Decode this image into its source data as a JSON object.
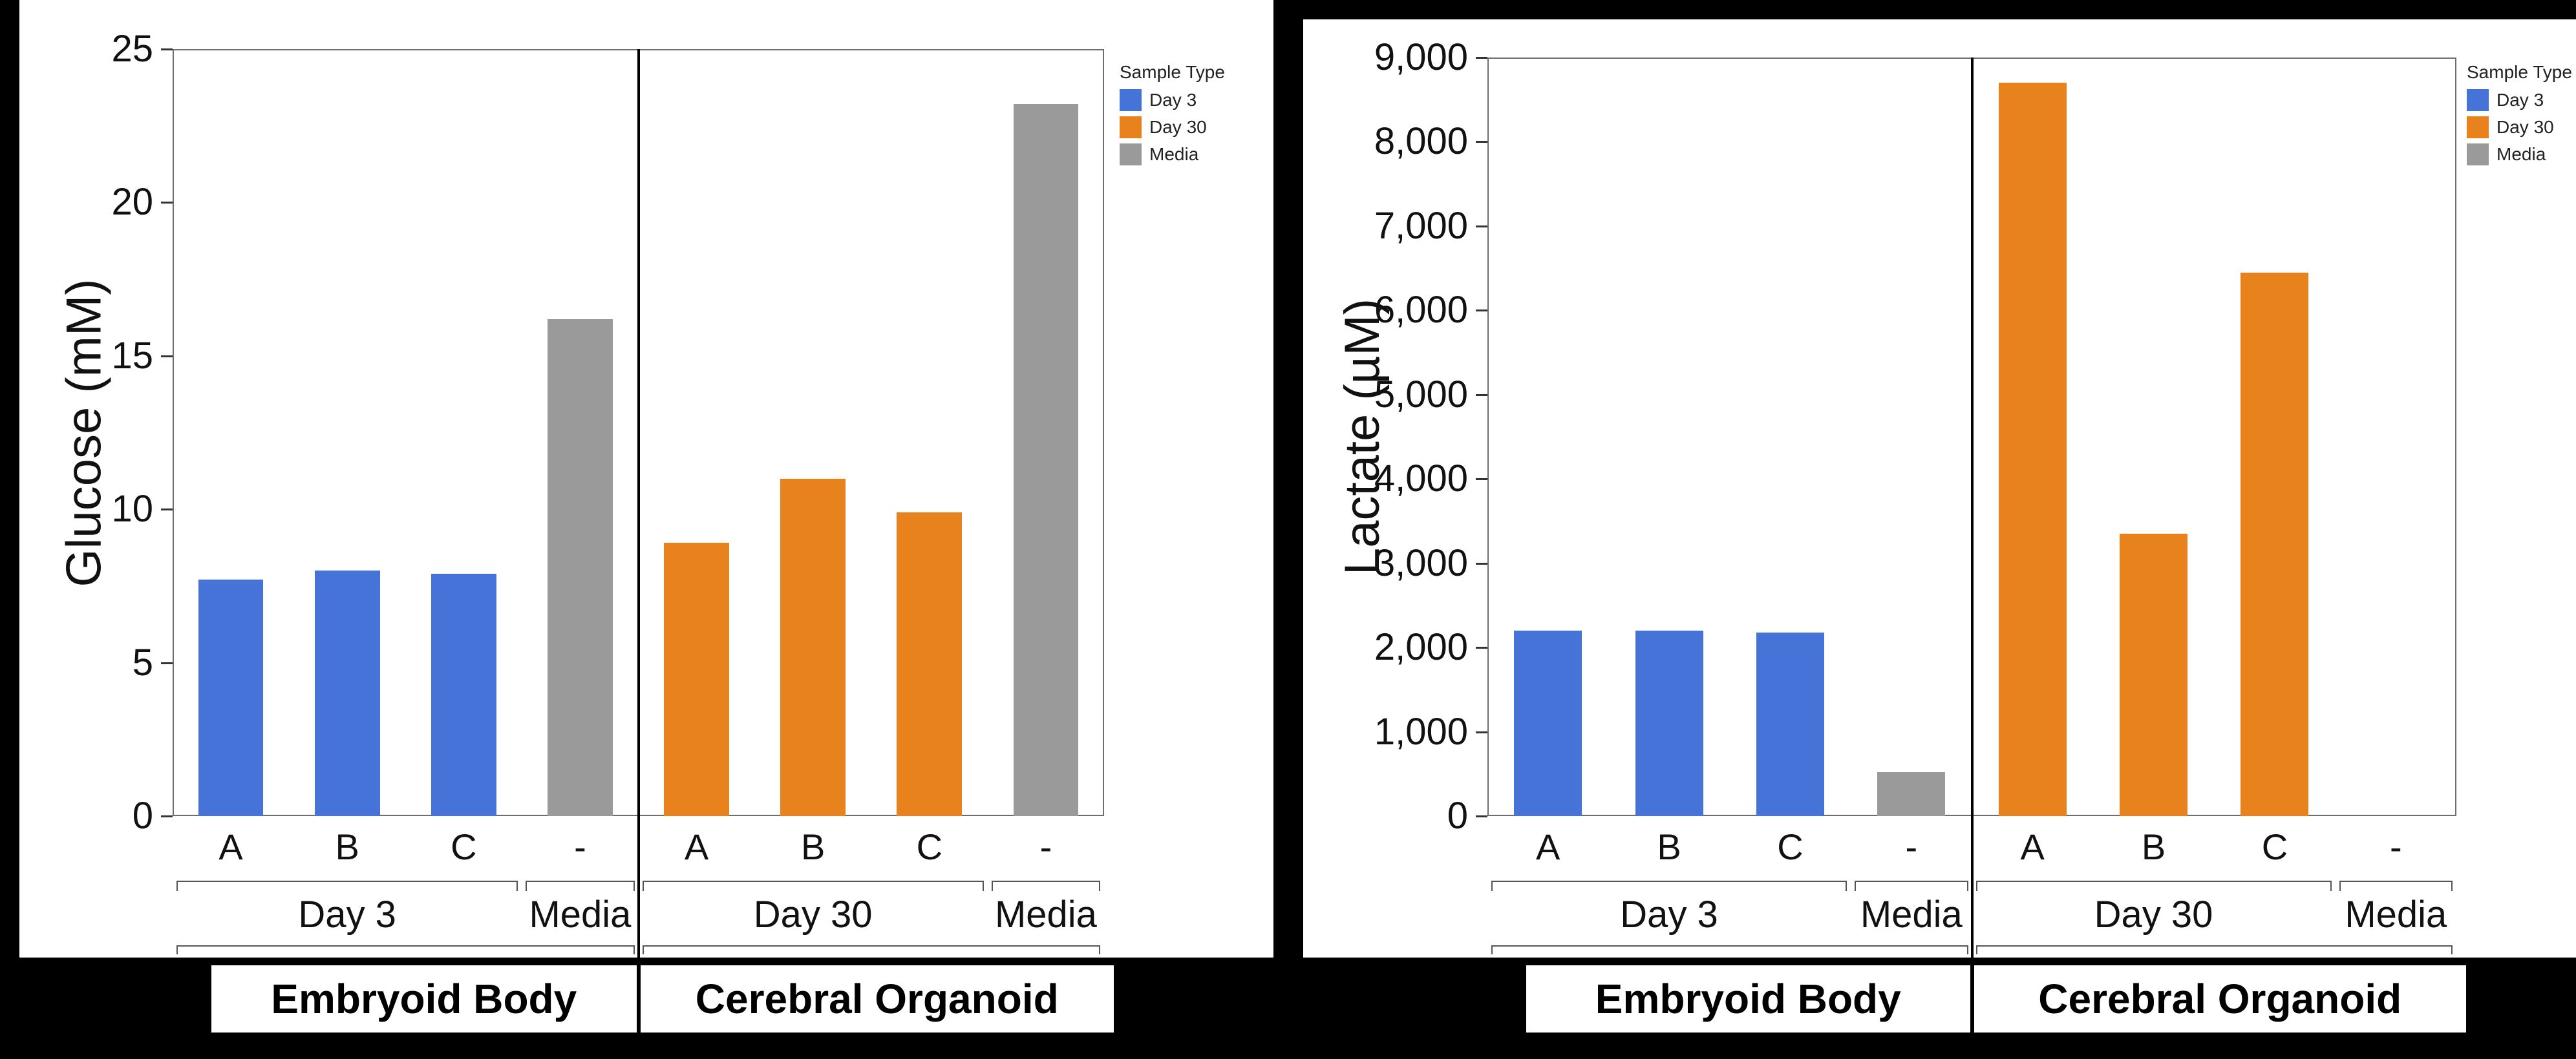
{
  "background": "#000000",
  "colors": {
    "day3": "#4573D8",
    "day30": "#E8821C",
    "media": "#9A9A9A"
  },
  "legend": {
    "title": "Sample Type",
    "items": [
      {
        "label": "Day 3",
        "color_key": "day3"
      },
      {
        "label": "Day 30",
        "color_key": "day30"
      },
      {
        "label": "Media",
        "color_key": "media"
      }
    ]
  },
  "chart_data": [
    {
      "type": "bar",
      "title": "",
      "ylabel": "Glucose (mM)",
      "xlabel": "",
      "ylim": [
        0,
        25
      ],
      "grid": false,
      "legend_position": "right-top",
      "yticks": [
        {
          "v": 0,
          "label": "0"
        },
        {
          "v": 5,
          "label": "5"
        },
        {
          "v": 10,
          "label": "10"
        },
        {
          "v": 15,
          "label": "15"
        },
        {
          "v": 20,
          "label": "20"
        },
        {
          "v": 25,
          "label": "25"
        }
      ],
      "categories": [
        "A",
        "B",
        "C",
        "-",
        "A",
        "B",
        "C",
        "-"
      ],
      "values": [
        7.7,
        8.0,
        7.9,
        16.2,
        8.9,
        11.0,
        9.9,
        23.2
      ],
      "bar_color_keys": [
        "day3",
        "day3",
        "day3",
        "media",
        "day30",
        "day30",
        "day30",
        "media"
      ],
      "groups": [
        {
          "label": "Day 3",
          "span": [
            0,
            3
          ]
        },
        {
          "label": "Media",
          "span": [
            3,
            4
          ]
        },
        {
          "label": "Day 30",
          "span": [
            4,
            7
          ]
        },
        {
          "label": "Media",
          "span": [
            7,
            8
          ]
        }
      ],
      "super_groups": [
        {
          "label": "Embryoid Body",
          "span": [
            0,
            4
          ]
        },
        {
          "label": "Cerebral Organoid",
          "span": [
            4,
            8
          ]
        }
      ]
    },
    {
      "type": "bar",
      "title": "",
      "ylabel": "Lactate (µM)",
      "xlabel": "",
      "ylim": [
        0,
        9000
      ],
      "grid": false,
      "legend_position": "right-top",
      "yticks": [
        {
          "v": 0,
          "label": "0"
        },
        {
          "v": 1000,
          "label": "1,000"
        },
        {
          "v": 2000,
          "label": "2,000"
        },
        {
          "v": 3000,
          "label": "3,000"
        },
        {
          "v": 4000,
          "label": "4,000"
        },
        {
          "v": 5000,
          "label": "5,000"
        },
        {
          "v": 6000,
          "label": "6,000"
        },
        {
          "v": 7000,
          "label": "7,000"
        },
        {
          "v": 8000,
          "label": "8,000"
        },
        {
          "v": 9000,
          "label": "9,000"
        }
      ],
      "categories": [
        "A",
        "B",
        "C",
        "-",
        "A",
        "B",
        "C",
        "-"
      ],
      "values": [
        2200,
        2200,
        2180,
        520,
        8700,
        3350,
        6450,
        0
      ],
      "bar_color_keys": [
        "day3",
        "day3",
        "day3",
        "media",
        "day30",
        "day30",
        "day30",
        "media"
      ],
      "groups": [
        {
          "label": "Day 3",
          "span": [
            0,
            3
          ]
        },
        {
          "label": "Media",
          "span": [
            3,
            4
          ]
        },
        {
          "label": "Day 30",
          "span": [
            4,
            7
          ]
        },
        {
          "label": "Media",
          "span": [
            7,
            8
          ]
        }
      ],
      "super_groups": [
        {
          "label": "Embryoid Body",
          "span": [
            0,
            4
          ]
        },
        {
          "label": "Cerebral Organoid",
          "span": [
            4,
            8
          ]
        }
      ]
    }
  ]
}
